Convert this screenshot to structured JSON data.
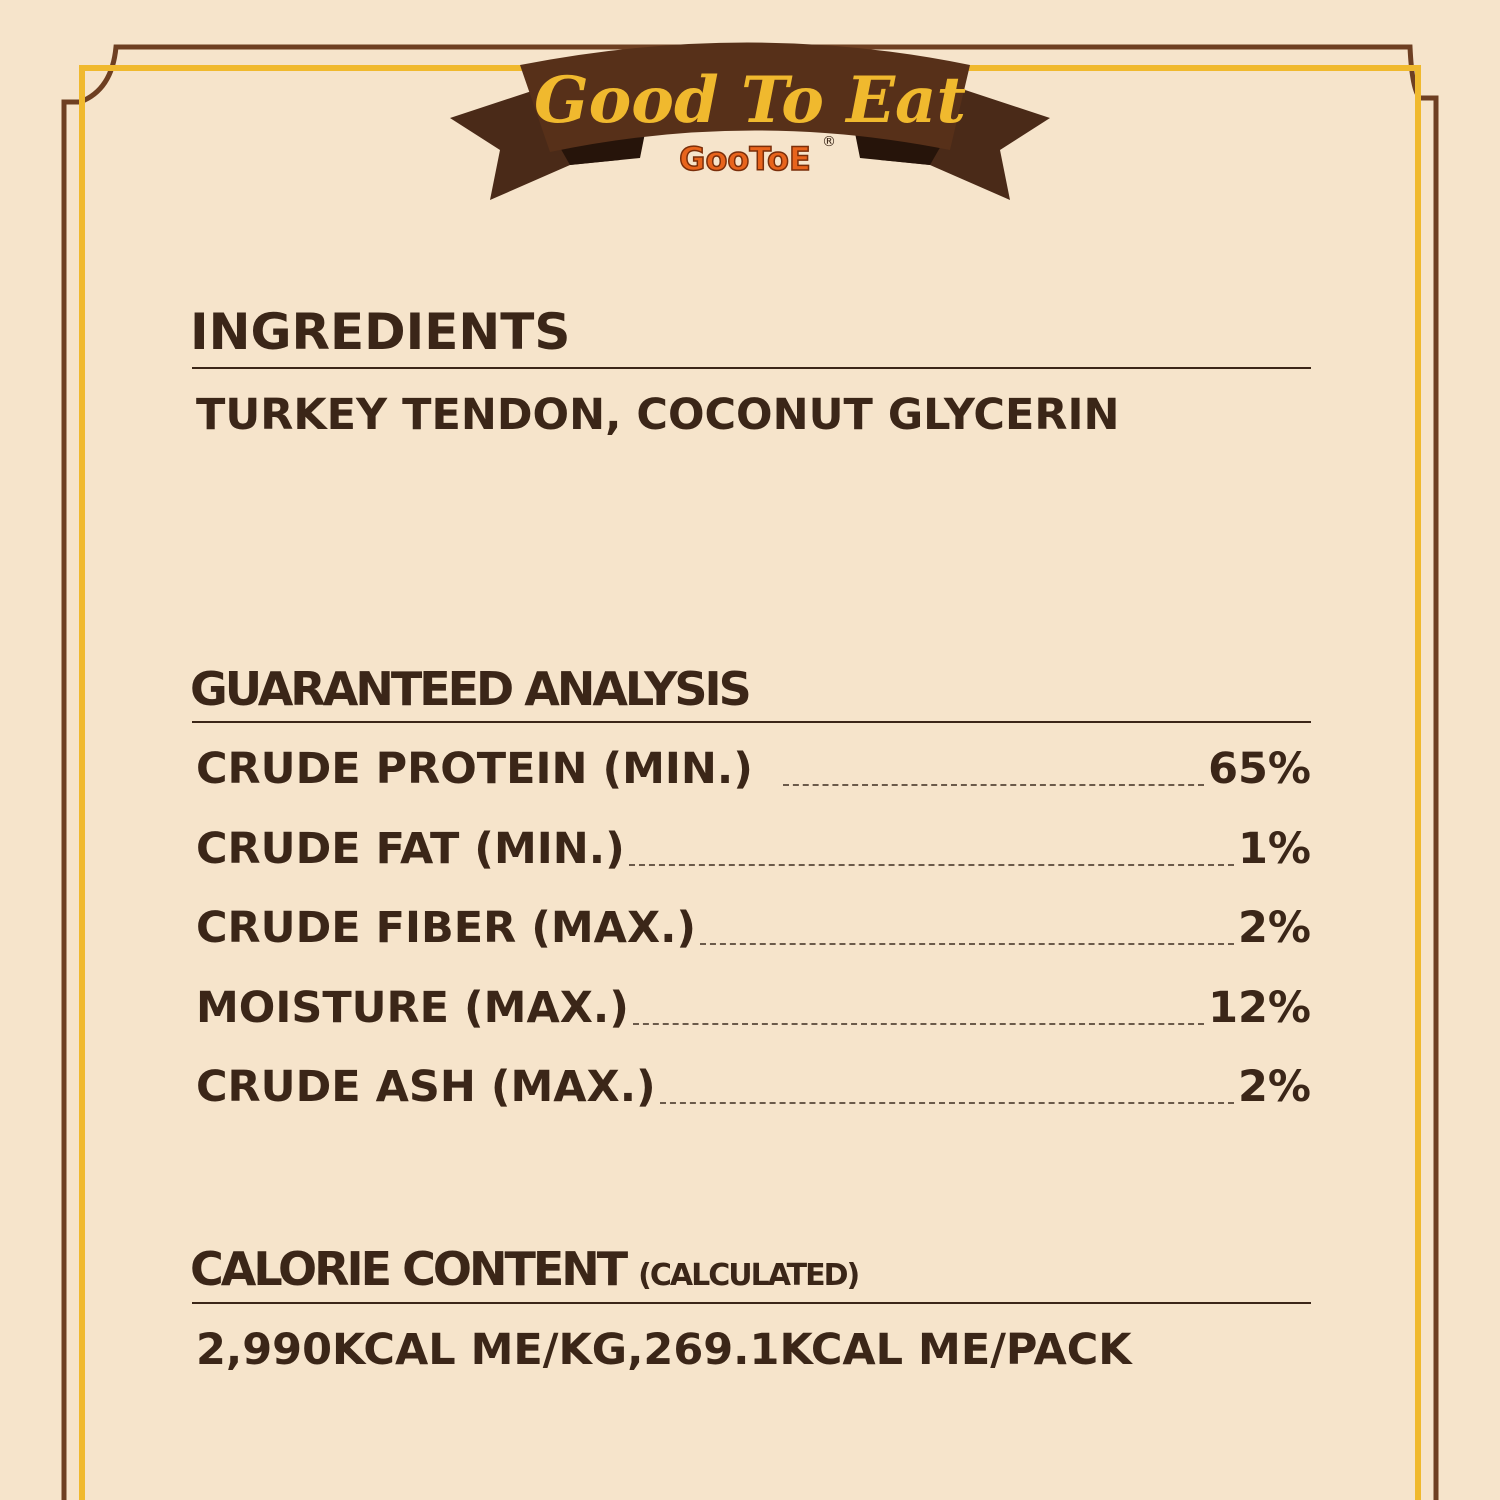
{
  "banner": {
    "title": "Good To Eat",
    "brand": "GooToE",
    "registered": "®"
  },
  "colors": {
    "background": "#f6e4cb",
    "brown": "#6e3f22",
    "gold": "#f0b92e",
    "text": "#3b2618",
    "brand_orange": "#e8641c"
  },
  "ingredients": {
    "heading": "INGREDIENTS",
    "text": "TURKEY TENDON, COCONUT GLYCERIN"
  },
  "analysis": {
    "heading": "GUARANTEED ANALYSIS",
    "rows": [
      {
        "label": "CRUDE PROTEIN (MIN.)",
        "value": "65%"
      },
      {
        "label": "CRUDE FAT (MIN.)",
        "value": "1%"
      },
      {
        "label": "CRUDE FIBER (MAX.)",
        "value": "2%"
      },
      {
        "label": "MOISTURE (MAX.)",
        "value": "12%"
      },
      {
        "label": "CRUDE ASH (MAX.)",
        "value": "2%"
      }
    ]
  },
  "calories": {
    "heading": "CALORIE CONTENT",
    "subheading": "(CALCULATED)",
    "text": "2,990KCAL ME/KG,269.1KCAL ME/PACK"
  }
}
